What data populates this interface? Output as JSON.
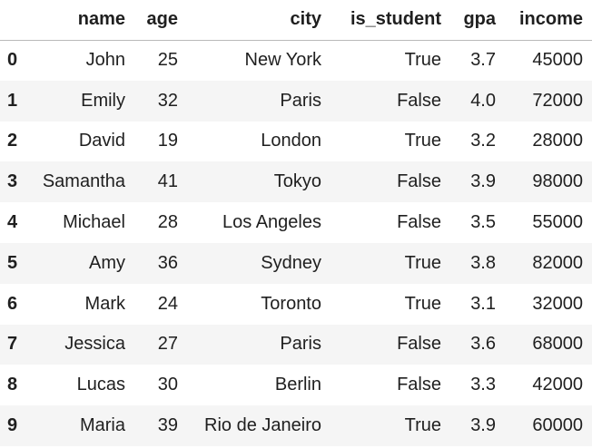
{
  "dataframe": {
    "index_header": "",
    "columns": [
      "name",
      "age",
      "city",
      "is_student",
      "gpa",
      "income"
    ],
    "rows": [
      {
        "index": "0",
        "cells": [
          "John",
          "25",
          "New York",
          "True",
          "3.7",
          "45000"
        ]
      },
      {
        "index": "1",
        "cells": [
          "Emily",
          "32",
          "Paris",
          "False",
          "4.0",
          "72000"
        ]
      },
      {
        "index": "2",
        "cells": [
          "David",
          "19",
          "London",
          "True",
          "3.2",
          "28000"
        ]
      },
      {
        "index": "3",
        "cells": [
          "Samantha",
          "41",
          "Tokyo",
          "False",
          "3.9",
          "98000"
        ]
      },
      {
        "index": "4",
        "cells": [
          "Michael",
          "28",
          "Los Angeles",
          "False",
          "3.5",
          "55000"
        ]
      },
      {
        "index": "5",
        "cells": [
          "Amy",
          "36",
          "Sydney",
          "True",
          "3.8",
          "82000"
        ]
      },
      {
        "index": "6",
        "cells": [
          "Mark",
          "24",
          "Toronto",
          "True",
          "3.1",
          "32000"
        ]
      },
      {
        "index": "7",
        "cells": [
          "Jessica",
          "27",
          "Paris",
          "False",
          "3.6",
          "68000"
        ]
      },
      {
        "index": "8",
        "cells": [
          "Lucas",
          "30",
          "Berlin",
          "False",
          "3.3",
          "42000"
        ]
      },
      {
        "index": "9",
        "cells": [
          "Maria",
          "39",
          "Rio de Janeiro",
          "True",
          "3.9",
          "60000"
        ]
      }
    ]
  }
}
